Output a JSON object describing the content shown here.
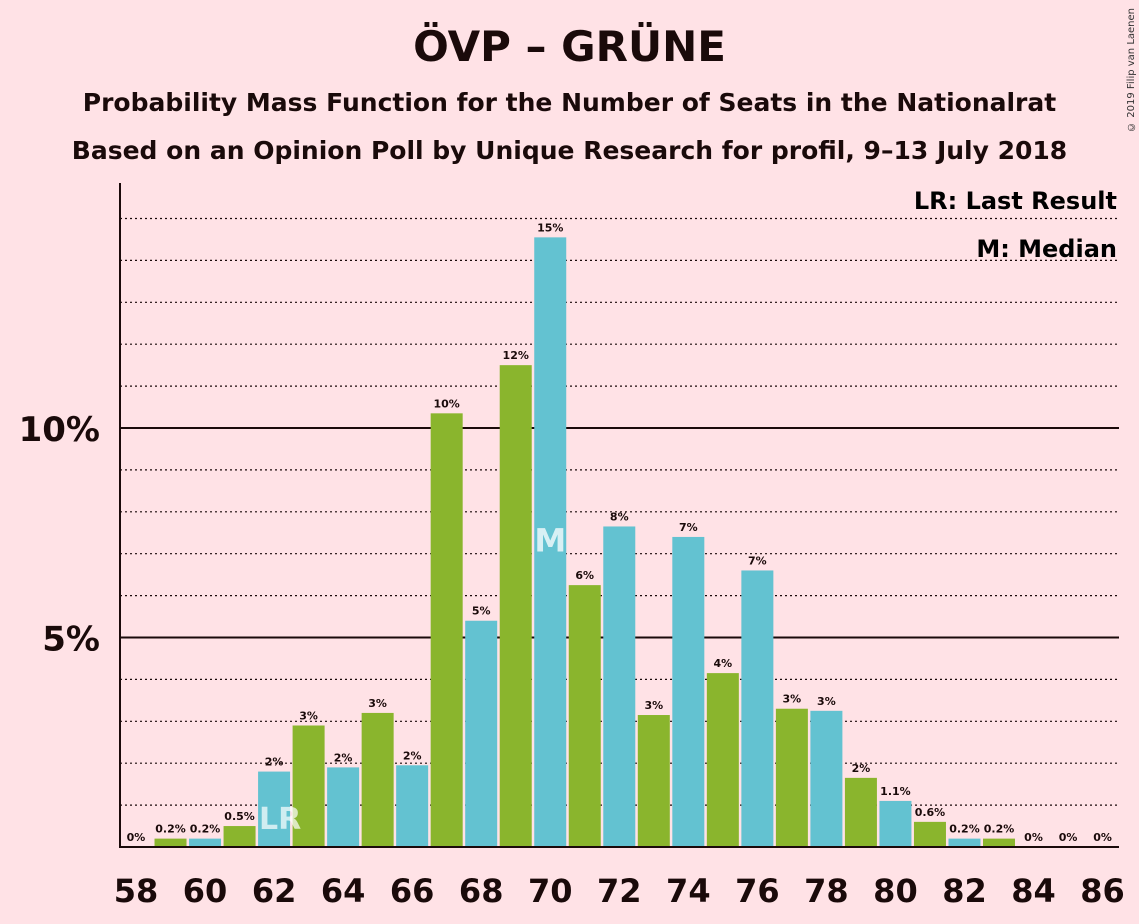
{
  "title": "ÖVP – GRÜNE",
  "subtitle1": "Probability Mass Function for the Number of Seats in the Nationalrat",
  "subtitle2": "Based on an Opinion Poll by Unique Research for profil, 9–13 July 2018",
  "copyright": "© 2019 Filip van Laenen",
  "legend": {
    "last_result": "LR: Last Result",
    "median": "M: Median"
  },
  "colors": {
    "background": "#FFE2E6",
    "green": "#8AB52D",
    "blue": "#63C2D1"
  },
  "chart_data": {
    "type": "bar",
    "x": [
      58,
      59,
      60,
      61,
      62,
      63,
      64,
      65,
      66,
      67,
      68,
      69,
      70,
      71,
      72,
      73,
      74,
      75,
      76,
      77,
      78,
      79,
      80,
      81,
      82,
      83,
      84,
      85,
      86
    ],
    "values": [
      0,
      0.2,
      0.2,
      0.5,
      1.8,
      2.9,
      1.9,
      3.2,
      1.95,
      10.35,
      5.4,
      11.5,
      14.55,
      6.25,
      7.65,
      3.15,
      7.4,
      4.15,
      6.6,
      3.3,
      3.25,
      1.65,
      1.1,
      0.6,
      0.2,
      0.2,
      0,
      0,
      0
    ],
    "labels": [
      "0%",
      "0.2%",
      "0.2%",
      "0.5%",
      "2%",
      "3%",
      "2%",
      "3%",
      "2%",
      "10%",
      "5%",
      "12%",
      "15%",
      "6%",
      "8%",
      "3%",
      "7%",
      "4%",
      "7%",
      "3%",
      "3%",
      "2%",
      "1.1%",
      "0.6%",
      "0.2%",
      "0.2%",
      "0%",
      "0%",
      "0%"
    ],
    "x_tick_labels": [
      "58",
      "60",
      "62",
      "64",
      "66",
      "68",
      "70",
      "72",
      "74",
      "76",
      "78",
      "80",
      "82",
      "84",
      "86"
    ],
    "y_tick_labels": [
      "5%",
      "10%"
    ],
    "y_ticks": [
      5,
      10
    ],
    "ylim": [
      0,
      15.5
    ],
    "last_result_seat": 62,
    "last_result_marker": "LR",
    "median_seat": 70,
    "median_marker": "M",
    "grid": "dotted every 1%, solid at 5% and 10%",
    "legend_position": "top-right"
  }
}
